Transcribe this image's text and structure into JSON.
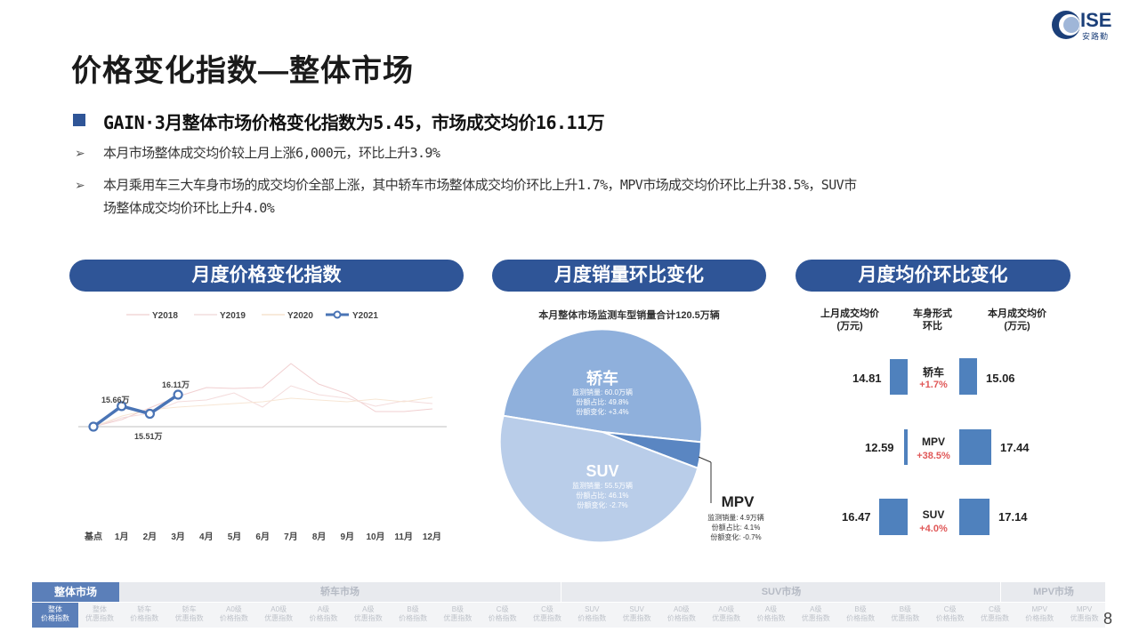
{
  "header": {
    "title": "价格变化指数—整体市场",
    "logo_text": "ISE",
    "logo_sub": "安路勤"
  },
  "summary": {
    "headline": "GAIN·3月整体市场价格变化指数为5.45，市场成交均价16.11万",
    "bullets": [
      "本月市场整体成交均价较上月上涨6,000元，环比上升3.9%",
      "本月乘用车三大车身市场的成交均价全部上涨，其中轿车市场整体成交均价环比上升1.7%，MPV市场成交均价环比上升38.5%，SUV市",
      "场整体成交均价环比上升4.0%"
    ],
    "bullet_marker": "➢"
  },
  "panels": {
    "p1": "月度价格变化指数",
    "p2": "月度销量环比变化",
    "p3": "月度均价环比变化"
  },
  "chart_data": [
    {
      "type": "line",
      "categories": [
        "基点",
        "1月",
        "2月",
        "3月",
        "4月",
        "5月",
        "6月",
        "7月",
        "8月",
        "9月",
        "10月",
        "11月",
        "12月"
      ],
      "legend": [
        "Y2018",
        "Y2019",
        "Y2020",
        "Y2021"
      ],
      "series": [
        {
          "name": "Y2021",
          "values": [
            0.0,
            3.5,
            2.2,
            5.45,
            null,
            null,
            null,
            null,
            null,
            null,
            null,
            null,
            null
          ],
          "color": "#4a74b5"
        }
      ],
      "annotations": [
        "15.66万",
        "15.51万",
        "16.11万"
      ]
    },
    {
      "type": "pie",
      "title": "本月整体市场监测车型销量合计120.5万辆",
      "slices": [
        {
          "name": "轿车",
          "share": 49.8,
          "lines": [
            "监测销量: 60.0万辆",
            "份额占比: 49.8%",
            "份额变化: +3.4%"
          ],
          "color": "#8fb0dc"
        },
        {
          "name": "SUV",
          "share": 46.1,
          "lines": [
            "监测销量: 55.5万辆",
            "份额占比: 46.1%",
            "份额变化: -2.7%"
          ],
          "color": "#b9cde9"
        },
        {
          "name": "MPV",
          "share": 4.1,
          "lines": [
            "监测销量: 4.9万辆",
            "份额占比: 4.1%",
            "份额变化: -0.7%"
          ],
          "color": "#5a86c2"
        }
      ]
    }
  ],
  "price_compare": {
    "col_left": [
      "上月成交均价",
      "(万元)"
    ],
    "col_mid": [
      "车身形式",
      "环比"
    ],
    "col_right": [
      "本月成交均价",
      "(万元)"
    ],
    "rows": [
      {
        "name": "轿车",
        "change": "+1.7%",
        "prev": "14.81",
        "curr": "15.06"
      },
      {
        "name": "MPV",
        "change": "+38.5%",
        "prev": "12.59",
        "curr": "17.44"
      },
      {
        "name": "SUV",
        "change": "+4.0%",
        "prev": "16.47",
        "curr": "17.14"
      }
    ]
  },
  "nav": {
    "active": "整体市场",
    "groups": [
      "轿车市场",
      "SUV市场",
      "MPV市场"
    ],
    "sub_active": [
      "整体",
      "价格指数"
    ],
    "subs": [
      [
        "整体",
        "优惠指数"
      ],
      [
        "轿车",
        "价格指数"
      ],
      [
        "轿车",
        "优惠指数"
      ],
      [
        "A0级",
        "价格指数"
      ],
      [
        "A0级",
        "优惠指数"
      ],
      [
        "A级",
        "价格指数"
      ],
      [
        "A级",
        "优惠指数"
      ],
      [
        "B级",
        "价格指数"
      ],
      [
        "B级",
        "优惠指数"
      ],
      [
        "C级",
        "价格指数"
      ],
      [
        "C级",
        "优惠指数"
      ],
      [
        "SUV",
        "价格指数"
      ],
      [
        "SUV",
        "优惠指数"
      ],
      [
        "A0级",
        "价格指数"
      ],
      [
        "A0级",
        "优惠指数"
      ],
      [
        "A级",
        "价格指数"
      ],
      [
        "A级",
        "优惠指数"
      ],
      [
        "B级",
        "价格指数"
      ],
      [
        "B级",
        "优惠指数"
      ],
      [
        "C级",
        "价格指数"
      ],
      [
        "C级",
        "优惠指数"
      ],
      [
        "MPV",
        "价格指数"
      ],
      [
        "MPV",
        "优惠指数"
      ]
    ]
  },
  "page_number": "8"
}
